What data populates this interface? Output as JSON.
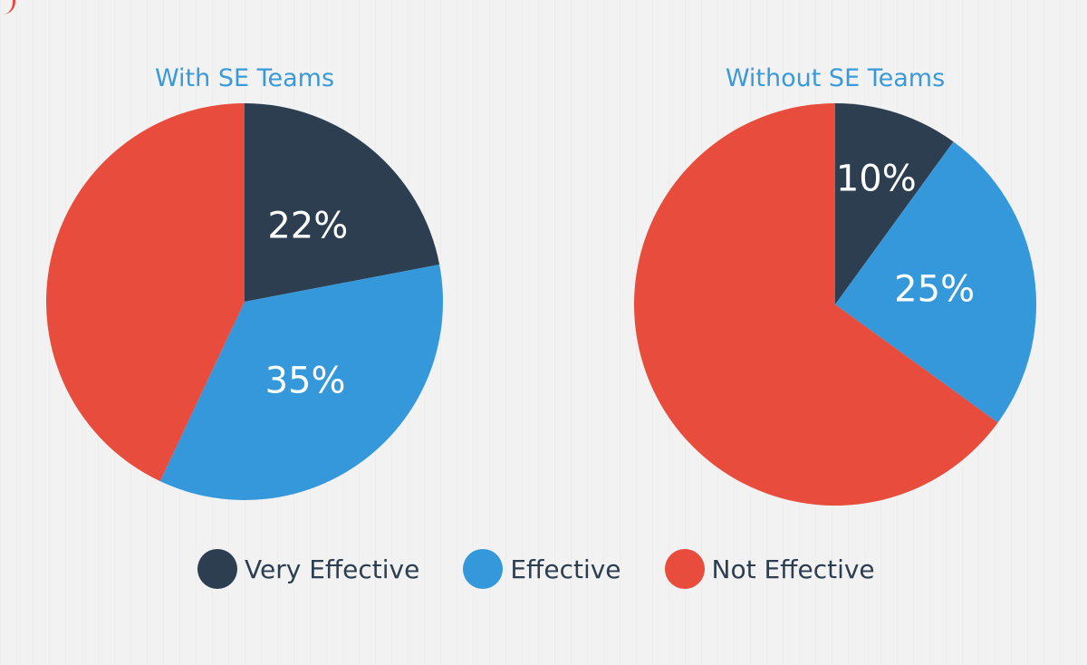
{
  "colors": {
    "title": "#3a9ad9",
    "very_effective": "#2c3e50",
    "effective": "#3498db",
    "not_effective": "#e74c3c"
  },
  "chart_data": [
    {
      "type": "pie",
      "title": "With SE Teams",
      "slices": [
        {
          "category": "Very Effective",
          "value": 22,
          "label": "22%"
        },
        {
          "category": "Effective",
          "value": 35,
          "label": "35%"
        },
        {
          "category": "Not Effective",
          "value": 43,
          "label": ""
        }
      ],
      "legend_placement": "bottom"
    },
    {
      "type": "pie",
      "title": "Without SE Teams",
      "slices": [
        {
          "category": "Very Effective",
          "value": 10,
          "label": "10%"
        },
        {
          "category": "Effective",
          "value": 25,
          "label": "25%"
        },
        {
          "category": "Not Effective",
          "value": 65,
          "label": ""
        }
      ],
      "legend_placement": "bottom"
    }
  ],
  "legend": [
    {
      "label": "Very Effective",
      "color_key": "very_effective"
    },
    {
      "label": "Effective",
      "color_key": "effective"
    },
    {
      "label": "Not Effective",
      "color_key": "not_effective"
    }
  ]
}
